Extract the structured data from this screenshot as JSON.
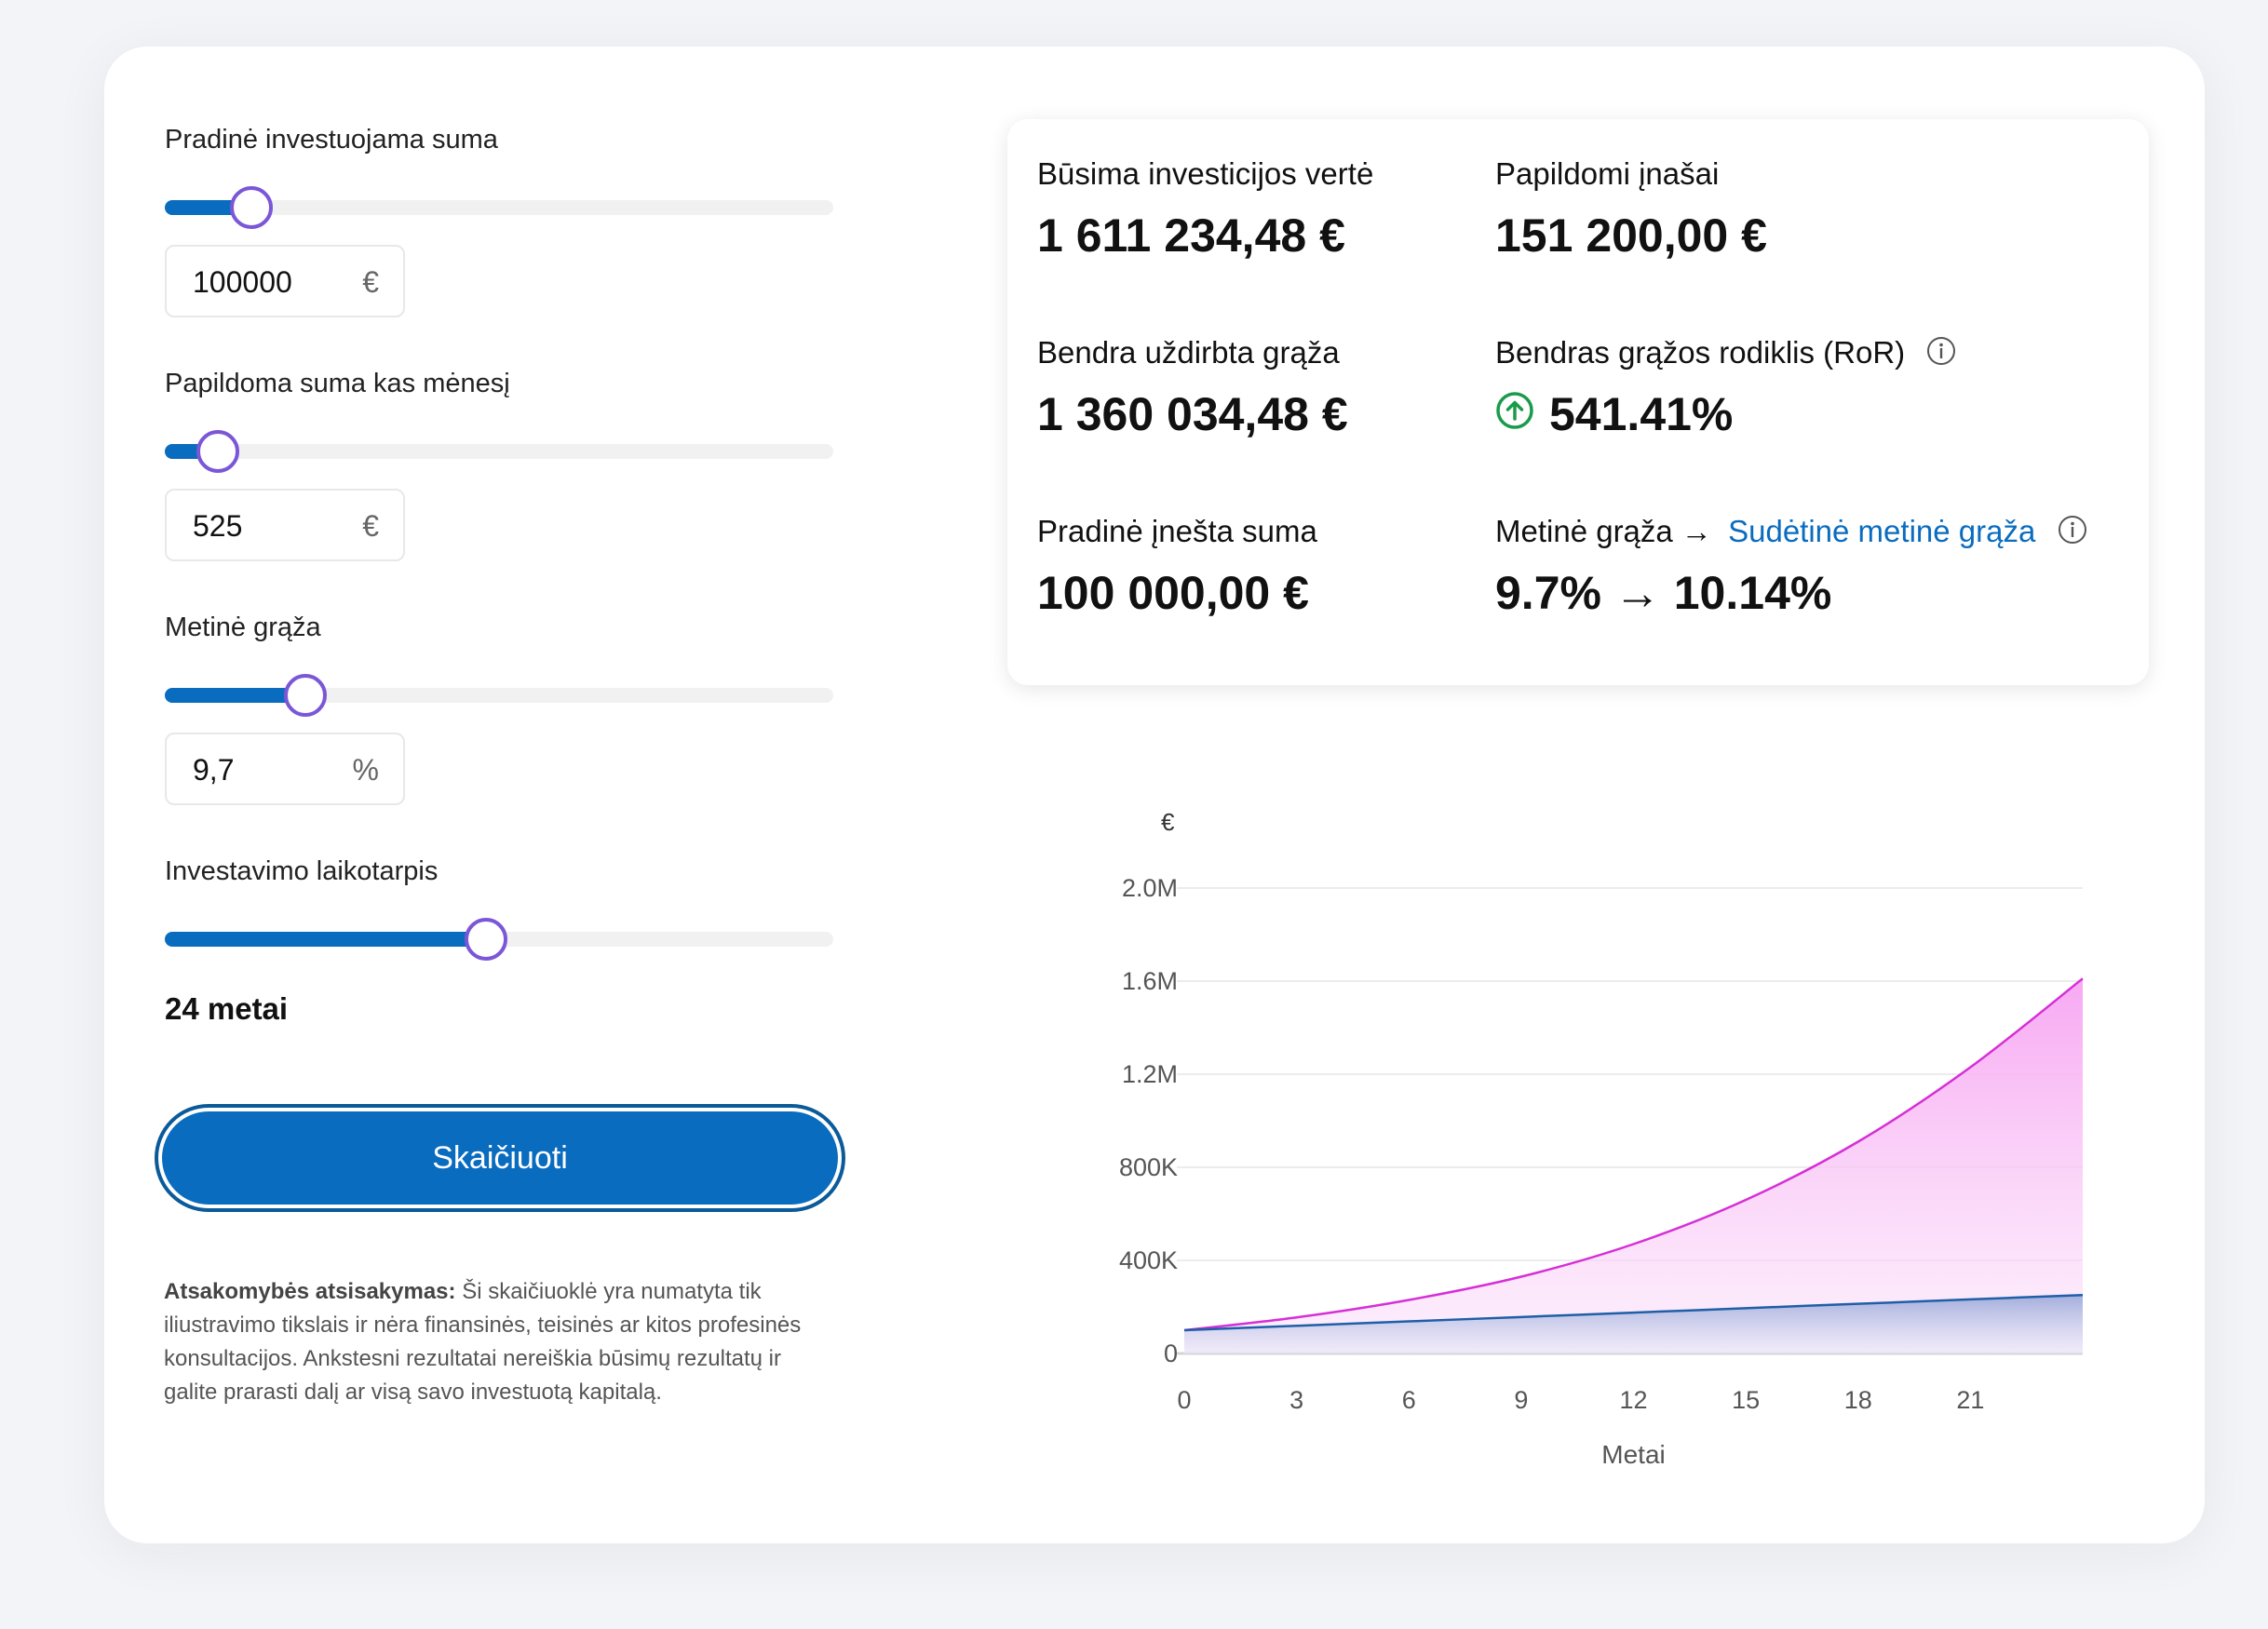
{
  "inputs": {
    "initial": {
      "label": "Pradinė investuojama suma",
      "value": "100000",
      "unit": "€",
      "slider_level": 0.13
    },
    "monthly": {
      "label": "Papildoma suma kas mėnesį",
      "value": "525",
      "unit": "€",
      "slider_level": 0.08
    },
    "annual_return": {
      "label": "Metinė grąža",
      "value": "9,7",
      "unit": "%",
      "slider_level": 0.21
    },
    "period": {
      "label": "Investavimo laikotarpis",
      "value_text": "24 metai",
      "slider_level": 0.48
    }
  },
  "calculate_button": "Skaičiuoti",
  "disclaimer": {
    "title": "Atsakomybės atsisakymas:",
    "text": "Ši skaičiuoklė yra numatyta tik iliustravimo tikslais ir nėra finansinės, teisinės ar kitos profesinės konsultacijos. Ankstesni rezultatai nereiškia būsimų rezultatų ir galite prarasti dalį ar visą savo investuotą kapitalą."
  },
  "results": {
    "future_value": {
      "label": "Būsima investicijos vertė",
      "value": "1 611 234,48 €"
    },
    "contributions": {
      "label": "Papildomi įnašai",
      "value": "151 200,00 €"
    },
    "total_return": {
      "label": "Bendra uždirbta grąža",
      "value": "1 360 034,48 €"
    },
    "ror": {
      "label": "Bendras grąžos rodiklis (RoR)",
      "value": "541.41%"
    },
    "initial": {
      "label": "Pradinė įnešta suma",
      "value": "100 000,00 €"
    },
    "annual": {
      "label_prefix": "Metinė grąža →",
      "label_link": "Sudėtinė metinė grąža",
      "value": "9.7% → 10.14%"
    }
  },
  "colors": {
    "accent": "#0a6cbf",
    "thumb_border": "#7b57d8",
    "series_total": "#d62fd6",
    "series_principal": "#1f5fa8",
    "up_icon": "#1a9b4b"
  },
  "icons": [
    "info-icon",
    "arrow-up-circle-icon"
  ],
  "chart_data": {
    "type": "area",
    "ylabel": "€",
    "xlabel": "Metai",
    "xlim": [
      0,
      24
    ],
    "ylim": [
      0,
      2000000
    ],
    "x_ticks": [
      "0",
      "3",
      "6",
      "9",
      "12",
      "15",
      "18",
      "21"
    ],
    "y_ticks": [
      "0",
      "400K",
      "800K",
      "1.2M",
      "1.6M",
      "2.0M"
    ],
    "x": [
      0,
      3,
      6,
      9,
      12,
      15,
      18,
      21,
      24
    ],
    "series": [
      {
        "values": [
          100000,
          155000,
          230000,
          330000,
          470000,
          660000,
          910000,
          1230000,
          1611234
        ]
      },
      {
        "values": [
          100000,
          118900,
          137800,
          156700,
          175600,
          194500,
          213400,
          232300,
          251200
        ]
      }
    ]
  }
}
